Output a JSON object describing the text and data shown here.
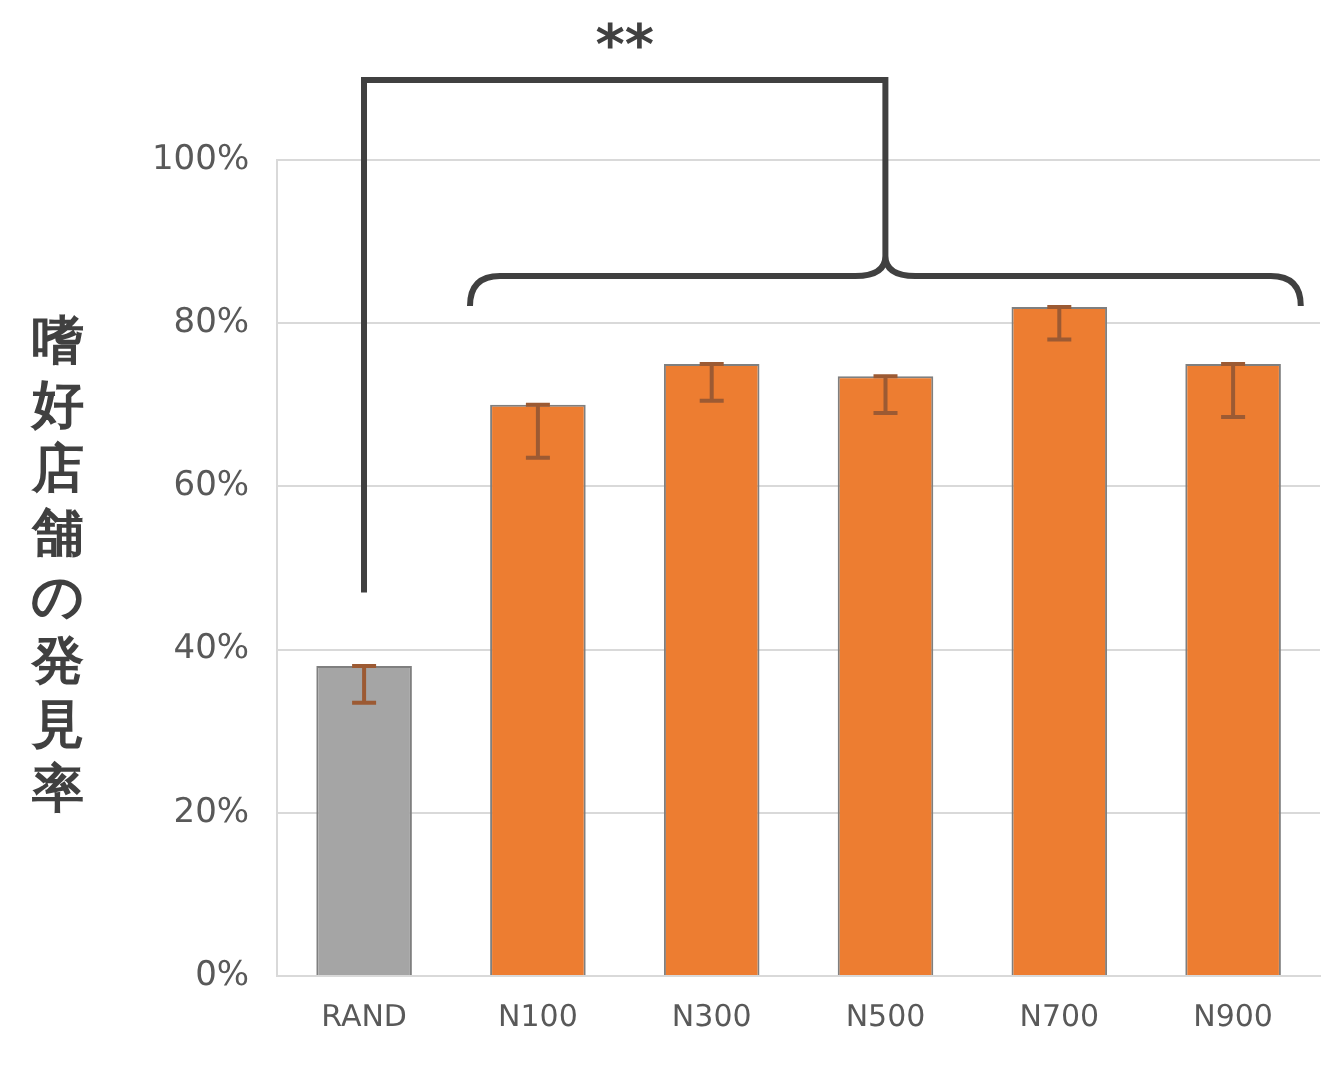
{
  "chart_data": {
    "type": "bar",
    "ylabel": "嗜好店舗の発見率",
    "categories": [
      "RAND",
      "N100",
      "N300",
      "N500",
      "N700",
      "N900"
    ],
    "values": [
      38,
      70,
      75,
      73.5,
      82,
      75
    ],
    "colors": [
      "#a5a5a5",
      "#ed7d31",
      "#ed7d31",
      "#ed7d31",
      "#ed7d31",
      "#ed7d31"
    ],
    "errors": [
      [
        33.5,
        38
      ],
      [
        63.5,
        70
      ],
      [
        70.5,
        75
      ],
      [
        69,
        73.5
      ],
      [
        78,
        82
      ],
      [
        68.5,
        75
      ]
    ],
    "ylim": [
      0,
      100
    ],
    "yticks": [
      {
        "value": 0,
        "label": "0%"
      },
      {
        "value": 20,
        "label": "20%"
      },
      {
        "value": 40,
        "label": "40%"
      },
      {
        "value": 60,
        "label": "60%"
      },
      {
        "value": 80,
        "label": "80%"
      },
      {
        "value": 100,
        "label": "100%"
      }
    ],
    "grid": "y",
    "legend": false,
    "annotations": [
      "**"
    ]
  }
}
